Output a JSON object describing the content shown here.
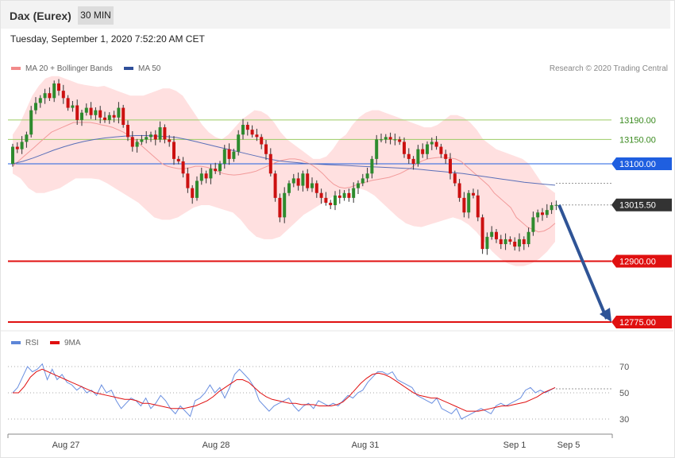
{
  "header": {
    "instrument": "Dax (Eurex)",
    "timeframe": "30 MIN"
  },
  "timestamp": "Tuesday, September 1, 2020 7:52:20 AM CET",
  "legend": {
    "bollinger": "MA 20 + Bollinger Bands",
    "ma50": "MA 50",
    "rsi": "RSI",
    "rsi_ma": "9MA"
  },
  "credit": "Research © 2020 Trading Central",
  "colors": {
    "up": "#2e8b2e",
    "down": "#cc1111",
    "band": "#ffd6d6",
    "ma20": "#f29a9a",
    "ma50": "#5a6fb8",
    "rsi": "#6a8fe0",
    "rsi_ma": "#e01010",
    "resistance": "#9ccc65",
    "pivot": "#1f5fe0",
    "support": "#e01010",
    "arrow": "#2f5496"
  },
  "chart_data": [
    {
      "type": "candlestick",
      "x_labels": [
        "Aug 27",
        "Aug 28",
        "Aug 31",
        "Sep 1",
        "Sep 5"
      ],
      "levels": [
        {
          "value": 13190.0,
          "label": "13190.00",
          "kind": "resistance"
        },
        {
          "value": 13150.0,
          "label": "13150.00",
          "kind": "resistance"
        },
        {
          "value": 13100.0,
          "label": "13100.00",
          "kind": "pivot"
        },
        {
          "value": 13015.5,
          "label": "13015.50",
          "kind": "last"
        },
        {
          "value": 12900.0,
          "label": "12900.00",
          "kind": "support"
        },
        {
          "value": 12775.0,
          "label": "12775.00",
          "kind": "support"
        }
      ],
      "last_price": 13015.5,
      "projection_target": 12775.0,
      "ylim": [
        12775,
        13280
      ],
      "closes": [
        13135,
        13130,
        13145,
        13160,
        13210,
        13225,
        13235,
        13245,
        13235,
        13265,
        13250,
        13235,
        13215,
        13220,
        13190,
        13205,
        13215,
        13200,
        13210,
        13195,
        13190,
        13200,
        13195,
        13215,
        13180,
        13155,
        13135,
        13145,
        13150,
        13155,
        13160,
        13150,
        13175,
        13150,
        13145,
        13110,
        13105,
        13080,
        13050,
        13030,
        13065,
        13080,
        13070,
        13090,
        13085,
        13100,
        13130,
        13110,
        13125,
        13160,
        13180,
        13170,
        13160,
        13155,
        13140,
        13120,
        13080,
        13030,
        12990,
        13040,
        13060,
        13070,
        13055,
        13080,
        13050,
        13060,
        13040,
        13030,
        13020,
        13015,
        13035,
        13030,
        13040,
        13030,
        13050,
        13060,
        13070,
        13080,
        13110,
        13150,
        13150,
        13155,
        13150,
        13150,
        13145,
        13120,
        13110,
        13100,
        13130,
        13120,
        13140,
        13145,
        13135,
        13120,
        13110,
        13080,
        13060,
        13030,
        13000,
        13040,
        13035,
        12990,
        12925,
        12950,
        12960,
        12945,
        12935,
        12945,
        12940,
        12930,
        12945,
        12935,
        12960,
        12990,
        13000,
        12995,
        13005,
        13015,
        13015.5
      ],
      "ma20": [
        13095,
        13105,
        13115,
        13125,
        13135,
        13145,
        13155,
        13165,
        13170,
        13175,
        13180,
        13185,
        13185,
        13185,
        13185,
        13183,
        13180,
        13178,
        13175,
        13170,
        13165,
        13158,
        13150,
        13140,
        13130,
        13120,
        13110,
        13100,
        13095,
        13092,
        13090,
        13090,
        13092,
        13095,
        13095,
        13093,
        13090,
        13085,
        13080,
        13078,
        13077,
        13078,
        13080,
        13082,
        13085,
        13090,
        13095,
        13100,
        13105,
        13108,
        13110,
        13110,
        13108,
        13103,
        13098,
        13090,
        13080,
        13068,
        13058,
        13052,
        13050,
        13052,
        13056,
        13060,
        13063,
        13066,
        13068,
        13070,
        13072,
        13076,
        13080,
        13086,
        13092,
        13100,
        13106,
        13110,
        13112,
        13113,
        13113,
        13112,
        13110,
        13105,
        13095,
        13085,
        13075,
        13065,
        13055,
        13040,
        13030,
        13020,
        13010,
        12990,
        12980,
        12970,
        12965,
        12960,
        12962,
        12968,
        12978
      ],
      "ma50": [
        13100,
        13105,
        13112,
        13120,
        13128,
        13135,
        13141,
        13146,
        13150,
        13153,
        13155,
        13157,
        13158,
        13158,
        13157,
        13156,
        13154,
        13150,
        13145,
        13140,
        13135,
        13130,
        13125,
        13120,
        13115,
        13110,
        13106,
        13104,
        13102,
        13100,
        13099,
        13098,
        13097,
        13096,
        13095,
        13094,
        13093,
        13092,
        13091,
        13090,
        13088,
        13086,
        13084,
        13082,
        13080,
        13077,
        13074,
        13071,
        13068,
        13065,
        13062,
        13060,
        13058,
        13056
      ],
      "bb_upper": [
        13160,
        13180,
        13210,
        13240,
        13260,
        13275,
        13280,
        13280,
        13275,
        13270,
        13265,
        13262,
        13260,
        13258,
        13260,
        13255,
        13250,
        13245,
        13240,
        13240,
        13240,
        13245,
        13250,
        13255,
        13255,
        13250,
        13240,
        13220,
        13200,
        13180,
        13165,
        13155,
        13150,
        13160,
        13175,
        13190,
        13200,
        13210,
        13208,
        13200,
        13185,
        13165,
        13150,
        13140,
        13130,
        13120,
        13110,
        13110,
        13115,
        13130,
        13150,
        13160,
        13180,
        13195,
        13205,
        13210,
        13210,
        13205,
        13200,
        13195,
        13190,
        13185,
        13180,
        13175,
        13175,
        13180,
        13190,
        13200,
        13200,
        13195,
        13185,
        13170,
        13150,
        13140,
        13130,
        13125,
        13120,
        13115,
        13110,
        13100,
        13080,
        13060,
        13050,
        13040
      ],
      "bb_lower": [
        13080,
        13070,
        13050,
        13040,
        13040,
        13045,
        13050,
        13060,
        13070,
        13070,
        13070,
        13068,
        13060,
        13050,
        13040,
        13030,
        13020,
        13005,
        12990,
        12985,
        12985,
        12990,
        13000,
        13010,
        13015,
        13015,
        13010,
        13005,
        13000,
        12985,
        12965,
        12950,
        12945,
        12945,
        12950,
        12965,
        12980,
        12995,
        13005,
        13015,
        13025,
        13035,
        13040,
        13045,
        13050,
        13045,
        13035,
        13020,
        13005,
        12990,
        12978,
        12972,
        12970,
        12975,
        12980,
        12985,
        12990,
        12985,
        12975,
        12960,
        12940,
        12920,
        12905,
        12895,
        12890,
        12890,
        12895,
        12905,
        12920,
        12940
      ]
    },
    {
      "type": "line",
      "title": "RSI",
      "yticks": [
        70,
        50,
        30
      ],
      "series": [
        {
          "name": "RSI",
          "values": [
            50,
            54,
            62,
            70,
            66,
            68,
            72,
            60,
            68,
            60,
            64,
            58,
            56,
            52,
            55,
            50,
            52,
            48,
            56,
            50,
            52,
            44,
            38,
            42,
            46,
            44,
            40,
            46,
            38,
            42,
            48,
            44,
            38,
            34,
            40,
            36,
            32,
            44,
            46,
            50,
            56,
            50,
            54,
            46,
            54,
            64,
            68,
            64,
            60,
            54,
            44,
            40,
            36,
            40,
            42,
            44,
            46,
            40,
            36,
            40,
            42,
            38,
            44,
            42,
            40,
            42,
            40,
            44,
            48,
            46,
            50,
            52,
            58,
            62,
            66,
            66,
            64,
            66,
            60,
            58,
            56,
            54,
            48,
            46,
            44,
            42,
            46,
            38,
            36,
            34,
            38,
            30,
            32,
            34,
            36,
            38,
            36,
            34,
            40,
            42,
            40,
            42,
            44,
            46,
            52,
            54,
            50,
            52,
            50,
            52,
            54
          ]
        },
        {
          "name": "9MA",
          "values": [
            50,
            50,
            55,
            62,
            66,
            68,
            66,
            64,
            62,
            60,
            58,
            56,
            54,
            52,
            50,
            49,
            48,
            47,
            46,
            45,
            45,
            44,
            42,
            42,
            41,
            40,
            39,
            38,
            38,
            38,
            39,
            40,
            42,
            44,
            47,
            51,
            54,
            57,
            60,
            60,
            58,
            54,
            50,
            47,
            45,
            44,
            43,
            42,
            42,
            41,
            41,
            41,
            40,
            40,
            40,
            41,
            43,
            47,
            52,
            57,
            61,
            64,
            65,
            64,
            62,
            59,
            56,
            53,
            50,
            48,
            47,
            46,
            46,
            44,
            42,
            40,
            38,
            36,
            36,
            36,
            37,
            38,
            39,
            40,
            40,
            41,
            42,
            43,
            45,
            47,
            50,
            52,
            54
          ]
        }
      ]
    }
  ]
}
